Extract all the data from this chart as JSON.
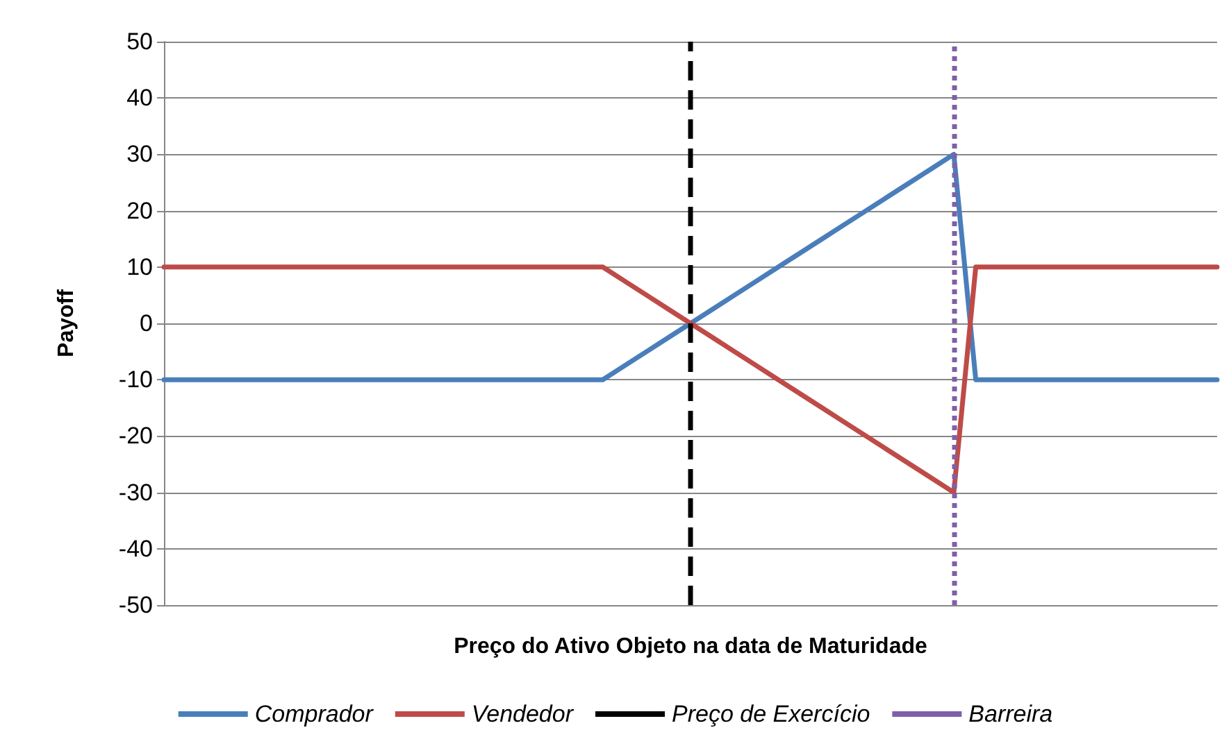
{
  "chart_data": {
    "type": "line",
    "xlabel": "Preço do Ativo Objeto na data de Maturidade",
    "ylabel": "Payoff",
    "categories": [
      null,
      null,
      null,
      null,
      null,
      null,
      null,
      null,
      null,
      null,
      null,
      null,
      null,
      null,
      null,
      null,
      null,
      null,
      null,
      null,
      null,
      null,
      null,
      null,
      null,
      null,
      null,
      null,
      null,
      null,
      null,
      null,
      null,
      null,
      null,
      null,
      null,
      null,
      null,
      null,
      null,
      null,
      null,
      null,
      null,
      null,
      null,
      null,
      null
    ],
    "ylim": [
      -50,
      50
    ],
    "yticks": [
      -50,
      -40,
      -30,
      -20,
      -10,
      0,
      10,
      20,
      30,
      40,
      50
    ],
    "grid": "y",
    "legend": "bottom",
    "marker": "none",
    "line_style": "solid",
    "series": [
      {
        "name": "Comprador",
        "color": "#4a7ebb",
        "values": [
          -10,
          -10,
          -10,
          -10,
          -10,
          -10,
          -10,
          -10,
          -10,
          -10,
          -10,
          -10,
          -10,
          -10,
          -10,
          -10,
          -10,
          -10,
          -10,
          -10,
          -10,
          -7.5,
          -5,
          -2.5,
          0,
          2.5,
          5,
          7.5,
          10,
          12.5,
          15,
          17.5,
          20,
          22.5,
          25,
          27.5,
          30,
          -10,
          -10,
          -10,
          -10,
          -10,
          -10,
          -10,
          -10,
          -10,
          -10,
          -10,
          -10
        ]
      },
      {
        "name": "Vendedor",
        "color": "#be4b48",
        "values": [
          10,
          10,
          10,
          10,
          10,
          10,
          10,
          10,
          10,
          10,
          10,
          10,
          10,
          10,
          10,
          10,
          10,
          10,
          10,
          10,
          10,
          7.5,
          5,
          2.5,
          0,
          -2.5,
          -5,
          -7.5,
          -10,
          -12.5,
          -15,
          -17.5,
          -20,
          -22.5,
          -25,
          -27.5,
          -30,
          10,
          10,
          10,
          10,
          10,
          10,
          10,
          10,
          10,
          10,
          10,
          10
        ]
      }
    ],
    "ref_lines": [
      {
        "axis": "x",
        "label": "Preço de Exercício",
        "color": "#000000",
        "line_style": "dashed"
      },
      {
        "axis": "x",
        "label": "Barreira",
        "color": "#7f5fa9",
        "line_style": "dotted"
      }
    ]
  }
}
